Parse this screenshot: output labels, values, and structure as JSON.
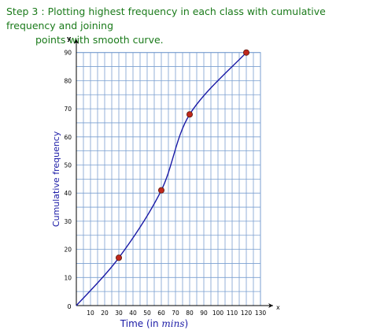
{
  "step": {
    "label": "Step 3 :",
    "line1": "Plotting highest frequency in each class with cumulative frequency and joining",
    "line2": "points with smooth curve."
  },
  "chart_data": {
    "type": "line",
    "smooth": true,
    "x": [
      0,
      30,
      60,
      80,
      120
    ],
    "series": [
      {
        "values": [
          0,
          17,
          41,
          68,
          90
        ],
        "color": "#1a1aa6",
        "marker_color": "#c0281c"
      }
    ],
    "xlabel_main": "Time (in ",
    "xlabel_unit": "mins",
    "xlabel_close": ")",
    "ylabel": "Cumulative frequency",
    "axis_x_letter": "x",
    "axis_y_letter": "y",
    "origin_label": "0",
    "xlim": [
      0,
      130
    ],
    "ylim": [
      0,
      90
    ],
    "x_ticks": [
      "10",
      "20",
      "30",
      "40",
      "50",
      "60",
      "70",
      "80",
      "90",
      "100",
      "110",
      "120",
      "130"
    ],
    "y_ticks": [
      "10",
      "20",
      "30",
      "40",
      "50",
      "60",
      "70",
      "80",
      "90"
    ],
    "grid": true,
    "grid_color": "#7a9fd0",
    "axis_color": "#000000",
    "label_color": "#1a1aa6"
  }
}
